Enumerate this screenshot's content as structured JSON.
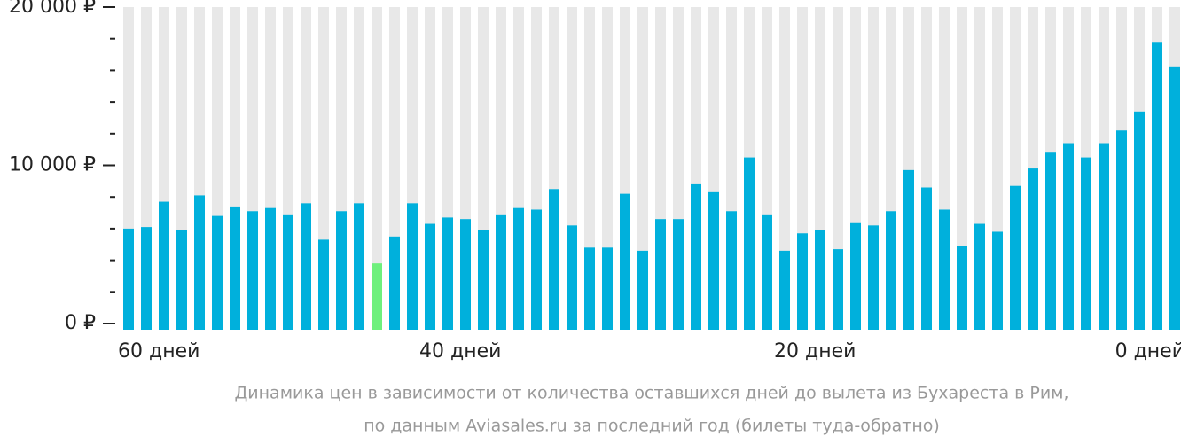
{
  "chart_data": {
    "type": "bar",
    "categories": [
      "60 дней",
      null,
      null,
      null,
      null,
      null,
      null,
      null,
      null,
      null,
      null,
      null,
      null,
      null,
      null,
      null,
      null,
      "40 дней",
      null,
      null,
      null,
      null,
      null,
      null,
      null,
      null,
      null,
      null,
      null,
      null,
      null,
      null,
      null,
      null,
      null,
      null,
      null,
      "20 дней",
      null,
      null,
      null,
      null,
      null,
      null,
      null,
      null,
      null,
      null,
      null,
      null,
      null,
      null,
      null,
      null,
      null,
      null,
      null,
      null,
      null,
      "0 дней"
    ],
    "values": [
      6000,
      6100,
      7700,
      5900,
      8100,
      6800,
      7400,
      7100,
      7300,
      6900,
      7600,
      5300,
      7100,
      7600,
      3800,
      5500,
      7600,
      6300,
      6700,
      6600,
      5900,
      6900,
      7300,
      7200,
      8500,
      6200,
      4800,
      4800,
      8200,
      4600,
      6600,
      6600,
      8800,
      8300,
      7100,
      10500,
      6900,
      4600,
      5700,
      5900,
      4700,
      6400,
      6200,
      7100,
      9700,
      8600,
      7200,
      4900,
      6300,
      5800,
      8700,
      9800,
      10800,
      11400,
      10500,
      11400,
      12200,
      13400,
      17800,
      16200
    ],
    "color": "#00b0dc",
    "min_color": "#6ef07c",
    "stripe_color": "#e8e8e8",
    "ylim": [
      0,
      20000
    ],
    "yticks": [
      {
        "value": 0,
        "label": "0 ₽"
      },
      {
        "value": 10000,
        "label": "10 000 ₽"
      },
      {
        "value": 20000,
        "label": "20 000 ₽"
      }
    ],
    "minor_yticks": [
      2000,
      4000,
      6000,
      8000,
      12000,
      14000,
      16000,
      18000
    ],
    "caption": [
      "Динамика цен в зависимости от количества оставшихся дней до вылета из Бухареста в Рим,",
      "по данным Aviasales.ru за последний год (билеты туда-обратно)"
    ]
  }
}
